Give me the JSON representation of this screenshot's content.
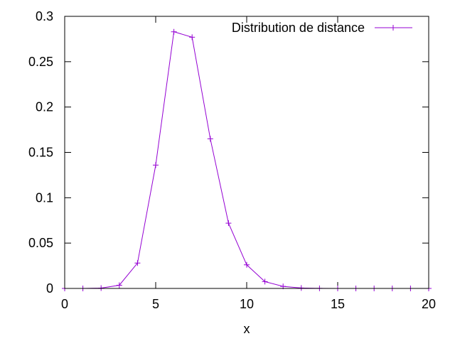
{
  "chart_data": {
    "type": "line",
    "title": "",
    "xlabel": "x",
    "ylabel": "",
    "xlim": [
      0,
      20
    ],
    "ylim": [
      0,
      0.3
    ],
    "x_ticks": [
      {
        "value": 0,
        "label": "0"
      },
      {
        "value": 5,
        "label": "5"
      },
      {
        "value": 10,
        "label": "10"
      },
      {
        "value": 15,
        "label": "15"
      },
      {
        "value": 20,
        "label": "20"
      }
    ],
    "y_ticks": [
      {
        "value": 0,
        "label": "0"
      },
      {
        "value": 0.05,
        "label": "0.05"
      },
      {
        "value": 0.1,
        "label": "0.1"
      },
      {
        "value": 0.15,
        "label": "0.15"
      },
      {
        "value": 0.2,
        "label": "0.2"
      },
      {
        "value": 0.25,
        "label": "0.25"
      },
      {
        "value": 0.3,
        "label": "0.3"
      }
    ],
    "grid": false,
    "legend_position": "top-right",
    "series": [
      {
        "name": "Distribution de distance",
        "color": "#9400d3",
        "marker": "plus",
        "x": [
          0,
          1,
          2,
          3,
          4,
          5,
          6,
          7,
          8,
          9,
          10,
          11,
          12,
          13,
          14,
          15,
          16,
          17,
          18,
          19,
          20
        ],
        "y": [
          0,
          0,
          0.0004,
          0.0035,
          0.028,
          0.136,
          0.283,
          0.277,
          0.165,
          0.072,
          0.026,
          0.0075,
          0.0023,
          0.0005,
          0.0001,
          0,
          0,
          0,
          0,
          0,
          0
        ]
      }
    ]
  }
}
